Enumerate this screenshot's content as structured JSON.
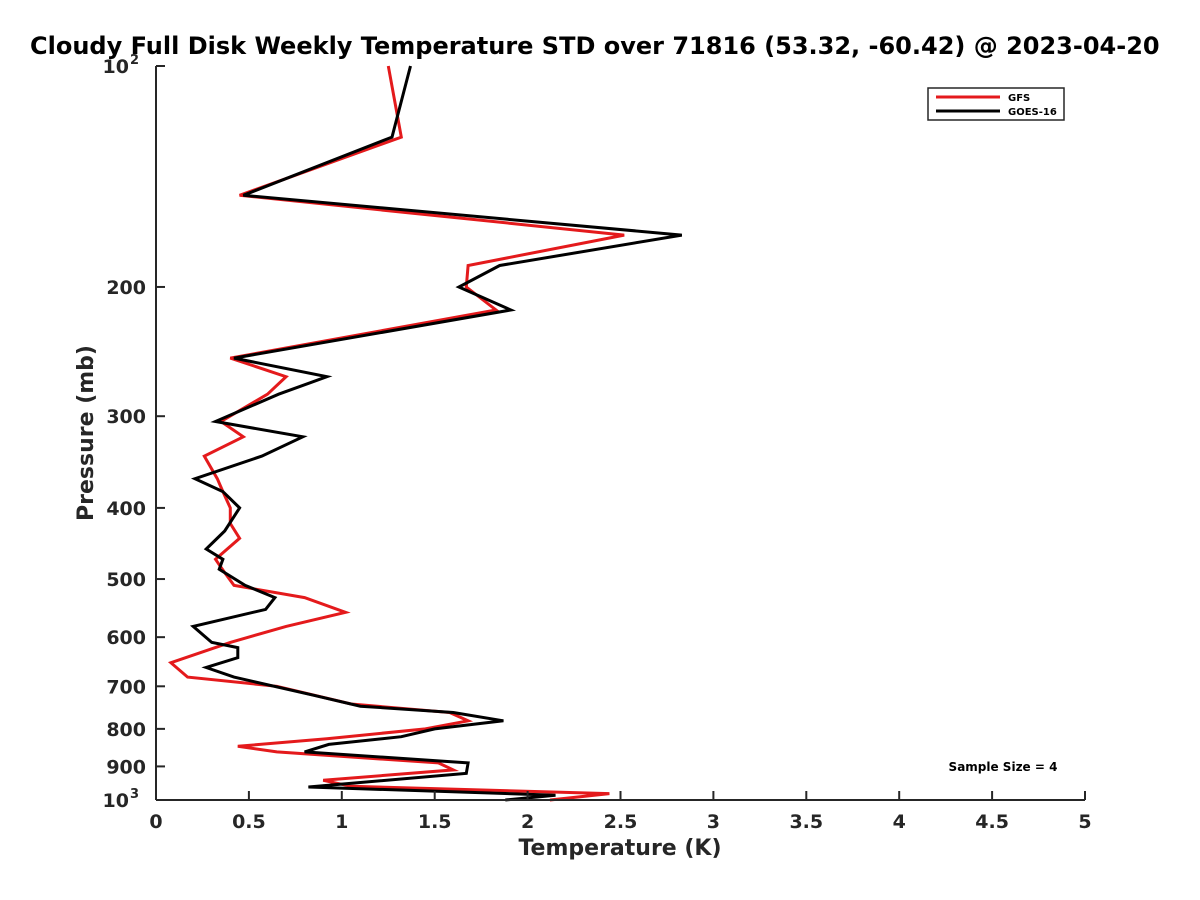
{
  "chart_data": {
    "type": "line",
    "title": "Cloudy Full Disk Weekly Temperature STD over 71816 (53.32, -60.42) @ 2023-04-20",
    "xlabel": "Temperature (K)",
    "ylabel": "Pressure (mb)",
    "xlim": [
      0,
      5
    ],
    "ylim": [
      100,
      1000
    ],
    "y_scale": "log",
    "y_reversed": true,
    "xticks": [
      "0",
      "0.5",
      "1",
      "1.5",
      "2",
      "2.5",
      "3",
      "3.5",
      "4",
      "4.5",
      "5"
    ],
    "yticks": [
      {
        "value": 100,
        "base": "10",
        "exp": "2"
      },
      {
        "value": 200,
        "label": "200"
      },
      {
        "value": 300,
        "label": "300"
      },
      {
        "value": 400,
        "label": "400"
      },
      {
        "value": 500,
        "label": "500"
      },
      {
        "value": 600,
        "label": "600"
      },
      {
        "value": 700,
        "label": "700"
      },
      {
        "value": 800,
        "label": "800"
      },
      {
        "value": 900,
        "label": "900"
      },
      {
        "value": 1000,
        "base": "10",
        "exp": "3"
      }
    ],
    "grid": false,
    "legend_position": "top-right",
    "annotation": "Sample Size = 4",
    "series": [
      {
        "name": "GFS",
        "color": "#e41a1c",
        "points": [
          {
            "x": 1.25,
            "y": 100
          },
          {
            "x": 1.32,
            "y": 125
          },
          {
            "x": 0.45,
            "y": 150
          },
          {
            "x": 2.52,
            "y": 170
          },
          {
            "x": 1.68,
            "y": 187
          },
          {
            "x": 1.67,
            "y": 200
          },
          {
            "x": 1.83,
            "y": 215
          },
          {
            "x": 0.4,
            "y": 250
          },
          {
            "x": 0.7,
            "y": 265
          },
          {
            "x": 0.6,
            "y": 280
          },
          {
            "x": 0.35,
            "y": 305
          },
          {
            "x": 0.47,
            "y": 320
          },
          {
            "x": 0.26,
            "y": 340
          },
          {
            "x": 0.33,
            "y": 365
          },
          {
            "x": 0.36,
            "y": 380
          },
          {
            "x": 0.4,
            "y": 400
          },
          {
            "x": 0.4,
            "y": 420
          },
          {
            "x": 0.45,
            "y": 440
          },
          {
            "x": 0.32,
            "y": 470
          },
          {
            "x": 0.37,
            "y": 490
          },
          {
            "x": 0.42,
            "y": 510
          },
          {
            "x": 0.8,
            "y": 530
          },
          {
            "x": 1.02,
            "y": 555
          },
          {
            "x": 0.7,
            "y": 580
          },
          {
            "x": 0.4,
            "y": 610
          },
          {
            "x": 0.08,
            "y": 650
          },
          {
            "x": 0.17,
            "y": 680
          },
          {
            "x": 0.65,
            "y": 700
          },
          {
            "x": 1.05,
            "y": 740
          },
          {
            "x": 1.58,
            "y": 760
          },
          {
            "x": 1.68,
            "y": 780
          },
          {
            "x": 1.45,
            "y": 800
          },
          {
            "x": 0.92,
            "y": 825
          },
          {
            "x": 0.44,
            "y": 845
          },
          {
            "x": 0.65,
            "y": 860
          },
          {
            "x": 1.52,
            "y": 890
          },
          {
            "x": 1.6,
            "y": 910
          },
          {
            "x": 0.9,
            "y": 940
          },
          {
            "x": 1.05,
            "y": 958
          },
          {
            "x": 2.44,
            "y": 980
          },
          {
            "x": 2.12,
            "y": 1000
          }
        ]
      },
      {
        "name": "GOES-16",
        "color": "#000000",
        "points": [
          {
            "x": 1.37,
            "y": 100
          },
          {
            "x": 1.27,
            "y": 125
          },
          {
            "x": 0.47,
            "y": 150
          },
          {
            "x": 2.83,
            "y": 170
          },
          {
            "x": 1.85,
            "y": 187
          },
          {
            "x": 1.63,
            "y": 200
          },
          {
            "x": 1.91,
            "y": 215
          },
          {
            "x": 0.42,
            "y": 250
          },
          {
            "x": 0.92,
            "y": 265
          },
          {
            "x": 0.66,
            "y": 280
          },
          {
            "x": 0.32,
            "y": 305
          },
          {
            "x": 0.79,
            "y": 320
          },
          {
            "x": 0.57,
            "y": 340
          },
          {
            "x": 0.21,
            "y": 365
          },
          {
            "x": 0.36,
            "y": 380
          },
          {
            "x": 0.45,
            "y": 400
          },
          {
            "x": 0.37,
            "y": 430
          },
          {
            "x": 0.27,
            "y": 455
          },
          {
            "x": 0.36,
            "y": 470
          },
          {
            "x": 0.34,
            "y": 485
          },
          {
            "x": 0.48,
            "y": 510
          },
          {
            "x": 0.64,
            "y": 530
          },
          {
            "x": 0.59,
            "y": 550
          },
          {
            "x": 0.2,
            "y": 580
          },
          {
            "x": 0.3,
            "y": 610
          },
          {
            "x": 0.44,
            "y": 620
          },
          {
            "x": 0.44,
            "y": 640
          },
          {
            "x": 0.27,
            "y": 660
          },
          {
            "x": 0.42,
            "y": 680
          },
          {
            "x": 0.85,
            "y": 720
          },
          {
            "x": 1.1,
            "y": 745
          },
          {
            "x": 1.6,
            "y": 760
          },
          {
            "x": 1.87,
            "y": 780
          },
          {
            "x": 1.5,
            "y": 800
          },
          {
            "x": 1.32,
            "y": 820
          },
          {
            "x": 0.93,
            "y": 840
          },
          {
            "x": 0.8,
            "y": 860
          },
          {
            "x": 1.68,
            "y": 890
          },
          {
            "x": 1.67,
            "y": 920
          },
          {
            "x": 0.82,
            "y": 960
          },
          {
            "x": 2.15,
            "y": 985
          },
          {
            "x": 1.88,
            "y": 1000
          }
        ]
      }
    ]
  }
}
